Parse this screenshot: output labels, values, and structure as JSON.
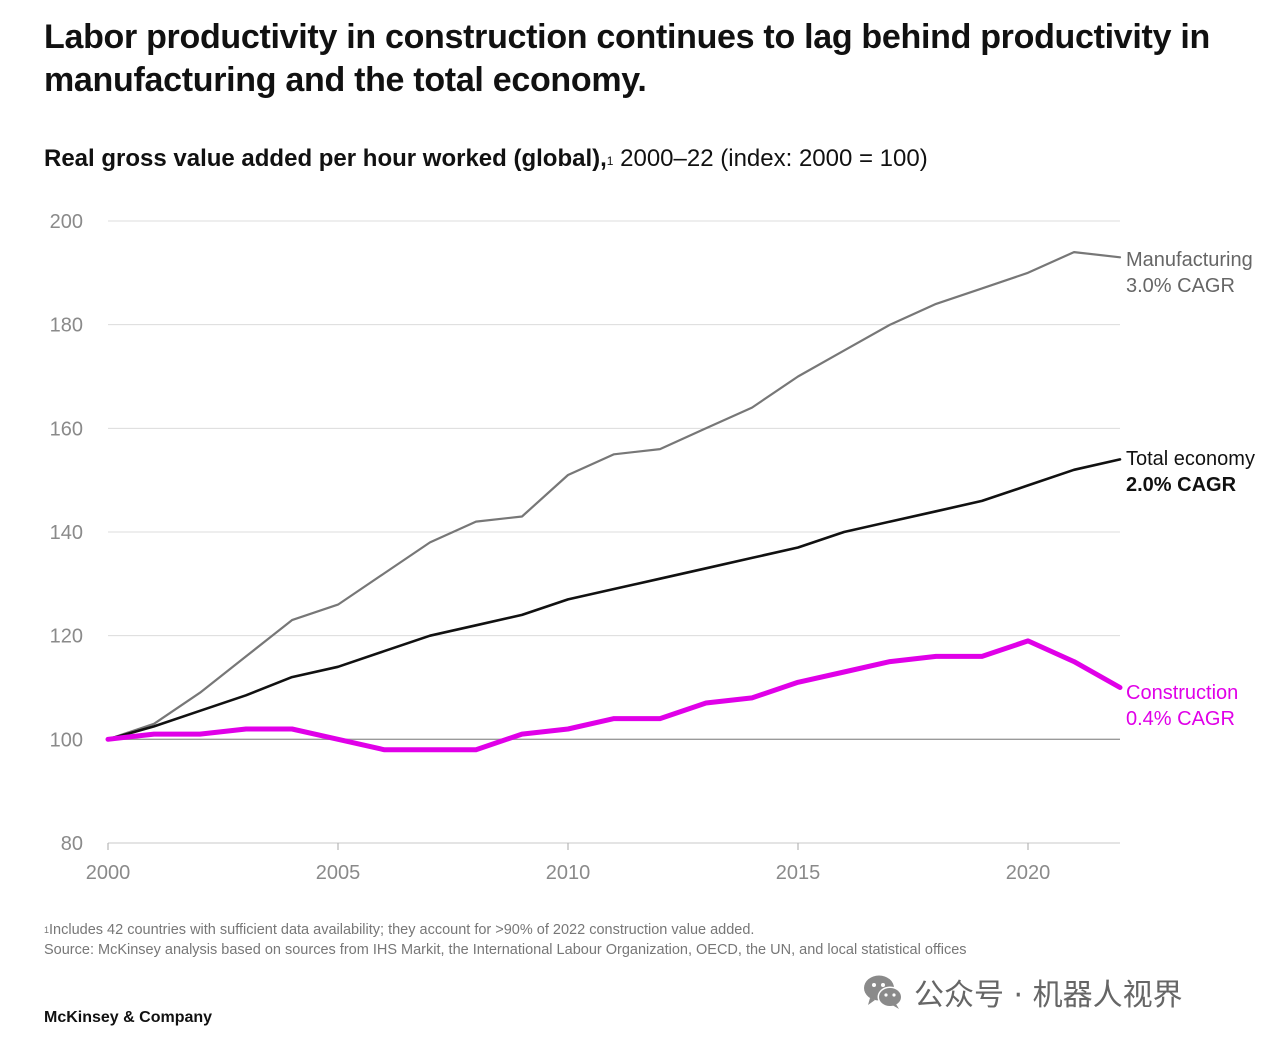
{
  "header": {
    "title": "Labor productivity in construction continues to lag behind productivity in manufacturing and the total economy.",
    "subtitle_bold": "Real gross value added per hour worked (global),",
    "subtitle_sup": "1",
    "subtitle_rest": " 2000–22 (index: 2000 = 100)"
  },
  "chart_data": {
    "type": "line",
    "title": "Real gross value added per hour worked (global), 2000–22 (index: 2000 = 100)",
    "xlabel": "",
    "ylabel": "",
    "xlim": [
      2000,
      2022
    ],
    "ylim": [
      80,
      200
    ],
    "y_ticks": [
      200,
      180,
      160,
      140,
      120,
      100,
      80
    ],
    "x_ticks": [
      2000,
      2005,
      2010,
      2015,
      2020
    ],
    "grid": "horizontal",
    "x": [
      2000,
      2001,
      2002,
      2003,
      2004,
      2005,
      2006,
      2007,
      2008,
      2009,
      2010,
      2011,
      2012,
      2013,
      2014,
      2015,
      2016,
      2017,
      2018,
      2019,
      2020,
      2021,
      2022
    ],
    "series": [
      {
        "name": "Manufacturing",
        "cagr": "3.0% CAGR",
        "color": "#777777",
        "label_color": "#666666",
        "values": [
          100,
          103,
          109,
          116,
          123,
          126,
          132,
          138,
          142,
          143,
          151,
          155,
          156,
          160,
          164,
          170,
          175,
          180,
          184,
          187,
          190,
          194,
          193
        ]
      },
      {
        "name": "Total economy",
        "cagr": "2.0% CAGR",
        "color": "#111111",
        "label_color": "#111111",
        "values": [
          100,
          102.5,
          105.5,
          108.5,
          112,
          114,
          117,
          120,
          122,
          124,
          127,
          129,
          131,
          133,
          135,
          137,
          140,
          142,
          144,
          146,
          149,
          152,
          154
        ]
      },
      {
        "name": "Construction",
        "cagr": "0.4% CAGR",
        "color": "#e000e8",
        "label_color": "#e000e8",
        "values": [
          100,
          101,
          101,
          102,
          102,
          100,
          98,
          98,
          98,
          101,
          102,
          104,
          104,
          107,
          108,
          111,
          113,
          115,
          116,
          116,
          119,
          115,
          110
        ]
      }
    ]
  },
  "footer": {
    "footnote_sup": "1",
    "footnote": "Includes 42 countries with sufficient data availability; they account for >90% of 2022 construction value added.",
    "source": "Source: McKinsey analysis based on sources from IHS Markit, the International Labour Organization, OECD, the UN, and local statistical offices",
    "brand": "McKinsey & Company",
    "watermark": "公众号 · 机器人视界",
    "watermark_icon": "wechat-icon"
  }
}
